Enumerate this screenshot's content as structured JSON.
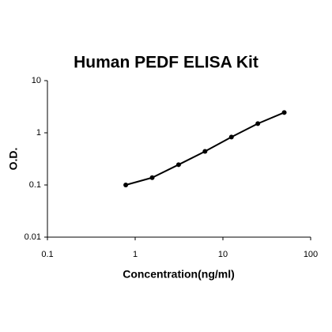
{
  "chart_data": {
    "type": "line",
    "title": "Human PEDF ELISA Kit",
    "x_label": "Concentration(ng/ml)",
    "y_label": "O.D.",
    "x": [
      0.781,
      1.563,
      3.125,
      6.25,
      12.5,
      25,
      50
    ],
    "series": [
      {
        "color": "#000000",
        "values": [
          0.1,
          0.138,
          0.245,
          0.44,
          0.83,
          1.5,
          2.45
        ]
      }
    ],
    "xlim": [
      0.1,
      100
    ],
    "xticks": [
      0.1,
      1,
      10,
      100
    ],
    "ylim": [
      0.01,
      10
    ],
    "yticks": [
      0.01,
      0.1,
      1,
      10
    ],
    "xscale": "log",
    "yscale": "log",
    "markers": true
  }
}
